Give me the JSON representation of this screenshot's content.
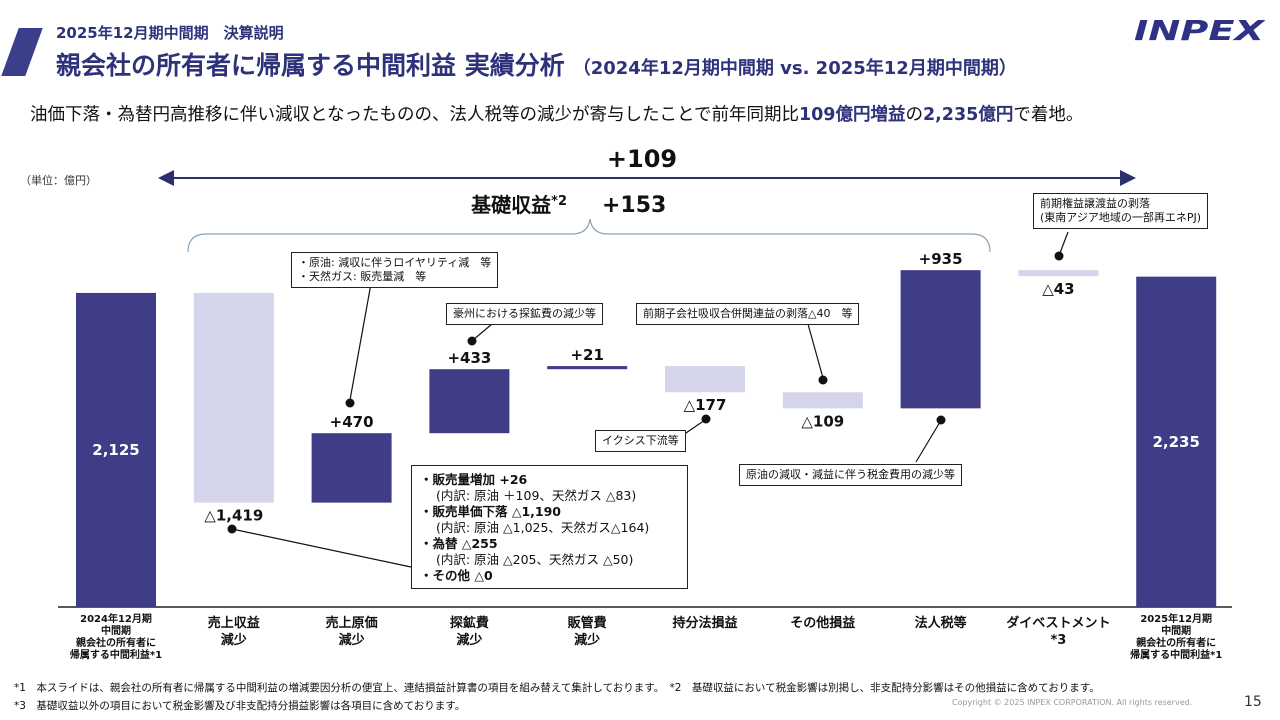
{
  "header": {
    "subtitle": "2025年12月期中間期　決算説明",
    "title": "親会社の所有者に帰属する中間利益 実績分析",
    "title_period": "（2024年12月期中間期 vs. 2025年12月期中間期）",
    "logo_text": "INPEX"
  },
  "summary": {
    "part1": "油価下落・為替円高推移に伴い減収となったものの、法人税等の減少が寄与したことで前年同期比",
    "highlight1": "109億円増益",
    "part2": "の",
    "highlight2": "2,235億円",
    "part3": "で着地。"
  },
  "unit_label": "（単位：億円）",
  "total_change_label": "+109",
  "base_profit_label": "基礎収益",
  "base_profit_note": "*2",
  "base_profit_value": "+153",
  "chart_data": {
    "type": "waterfall",
    "unit": "億円",
    "steps": [
      {
        "category": "2024年12月期中間期親会社の所有者に帰属する中間利益*1",
        "kind": "total",
        "value": 2125,
        "label": "2,125"
      },
      {
        "category": "売上収益減少",
        "kind": "delta",
        "value": -1419,
        "label": "△1,419"
      },
      {
        "category": "売上原価減少",
        "kind": "delta",
        "value": 470,
        "label": "+470"
      },
      {
        "category": "探鉱費減少",
        "kind": "delta",
        "value": 433,
        "label": "+433"
      },
      {
        "category": "販管費減少",
        "kind": "delta",
        "value": 21,
        "label": "+21"
      },
      {
        "category": "持分法損益",
        "kind": "delta",
        "value": -177,
        "label": "△177"
      },
      {
        "category": "その他損益",
        "kind": "delta",
        "value": -109,
        "label": "△109"
      },
      {
        "category": "法人税等",
        "kind": "delta",
        "value": 935,
        "label": "+935"
      },
      {
        "category": "ダイベストメント*3",
        "kind": "delta",
        "value": -43,
        "label": "△43"
      },
      {
        "category": "2025年12月期中間期親会社の所有者に帰属する中間利益*1",
        "kind": "total",
        "value": 2235,
        "label": "2,235"
      }
    ],
    "colors": {
      "total": "#3f3d87",
      "increase": "#3f3d87",
      "decrease": "#d4d4ea"
    }
  },
  "categories_display": [
    [
      "2024年12月期",
      "中間期",
      "親会社の所有者に",
      "帰属する中間利益*1"
    ],
    [
      "売上収益",
      "減少"
    ],
    [
      "売上原価",
      "減少"
    ],
    [
      "探鉱費",
      "減少"
    ],
    [
      "販管費",
      "減少"
    ],
    [
      "持分法損益"
    ],
    [
      "その他損益"
    ],
    [
      "法人税等"
    ],
    [
      "ダイベストメント*3"
    ],
    [
      "2025年12月期",
      "中間期",
      "親会社の所有者に",
      "帰属する中間利益*1"
    ]
  ],
  "notes": {
    "cost_of_sales": [
      "・原油: 減収に伴うロイヤリティ減　等",
      "・天然ガス: 販売量減　等"
    ],
    "exploration": "豪州における探鉱費の減少等",
    "equity_method": "イクシス下流等",
    "other": "前期子会社吸収合併関連益の剥落△40　等",
    "tax": "原油の減収・減益に伴う税金費用の減少等",
    "divestment": [
      "前期権益譲渡益の剥落",
      "(東南アジア地域の一部再エネPJ)"
    ]
  },
  "detail_box": [
    {
      "text": "・販売量増加 +26",
      "bold": true
    },
    {
      "text": "(内訳: 原油 ＋109、天然ガス △83)",
      "bold": false
    },
    {
      "text": "・販売単価下落 △1,190",
      "bold": true
    },
    {
      "text": "(内訳: 原油 △1,025、天然ガス△164)",
      "bold": false
    },
    {
      "text": "・為替 △255",
      "bold": true
    },
    {
      "text": "(内訳: 原油 △205、天然ガス △50)",
      "bold": false
    },
    {
      "text": "・その他 △0",
      "bold": true
    }
  ],
  "footnotes": {
    "fn1": "*1　本スライドは、親会社の所有者に帰属する中間利益の増減要因分析の便宜上、連結損益計算書の項目を組み替えて集計しております。",
    "fn2": "*2　基礎収益において税金影響は別掲し、非支配持分影響はその他損益に含めております。",
    "fn3": "*3　基礎収益以外の項目において税金影響及び非支配持分損益影響は各項目に含めております。"
  },
  "copyright": "Copyright © 2025 INPEX CORPORATION. All rights reserved.",
  "page_number": "15"
}
